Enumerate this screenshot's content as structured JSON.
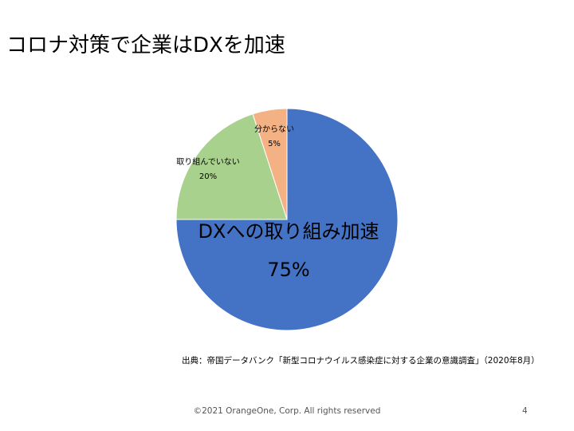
{
  "slide": {
    "title": "コロナ対策で企業はDXを加速",
    "source": "出典：帝国データバンク「新型コロナウイルス感染症に対する企業の意識調査」（2020年8月）",
    "footer": "©2021 OrangeOne, Corp. All rights reserved",
    "page_number": "4"
  },
  "chart_data": {
    "type": "pie",
    "title": "",
    "slices": [
      {
        "label": "DXへの取り組み加速",
        "value": 75,
        "value_label": "75%",
        "color": "#4472C4"
      },
      {
        "label": "取り組んでいない",
        "value": 20,
        "value_label": "20%",
        "color": "#A9D18E"
      },
      {
        "label": "分からない",
        "value": 5,
        "value_label": "5%",
        "color": "#F4B183"
      }
    ],
    "start": "12 o'clock",
    "direction": "clockwise",
    "legend": "none",
    "labels": "on-slice"
  }
}
